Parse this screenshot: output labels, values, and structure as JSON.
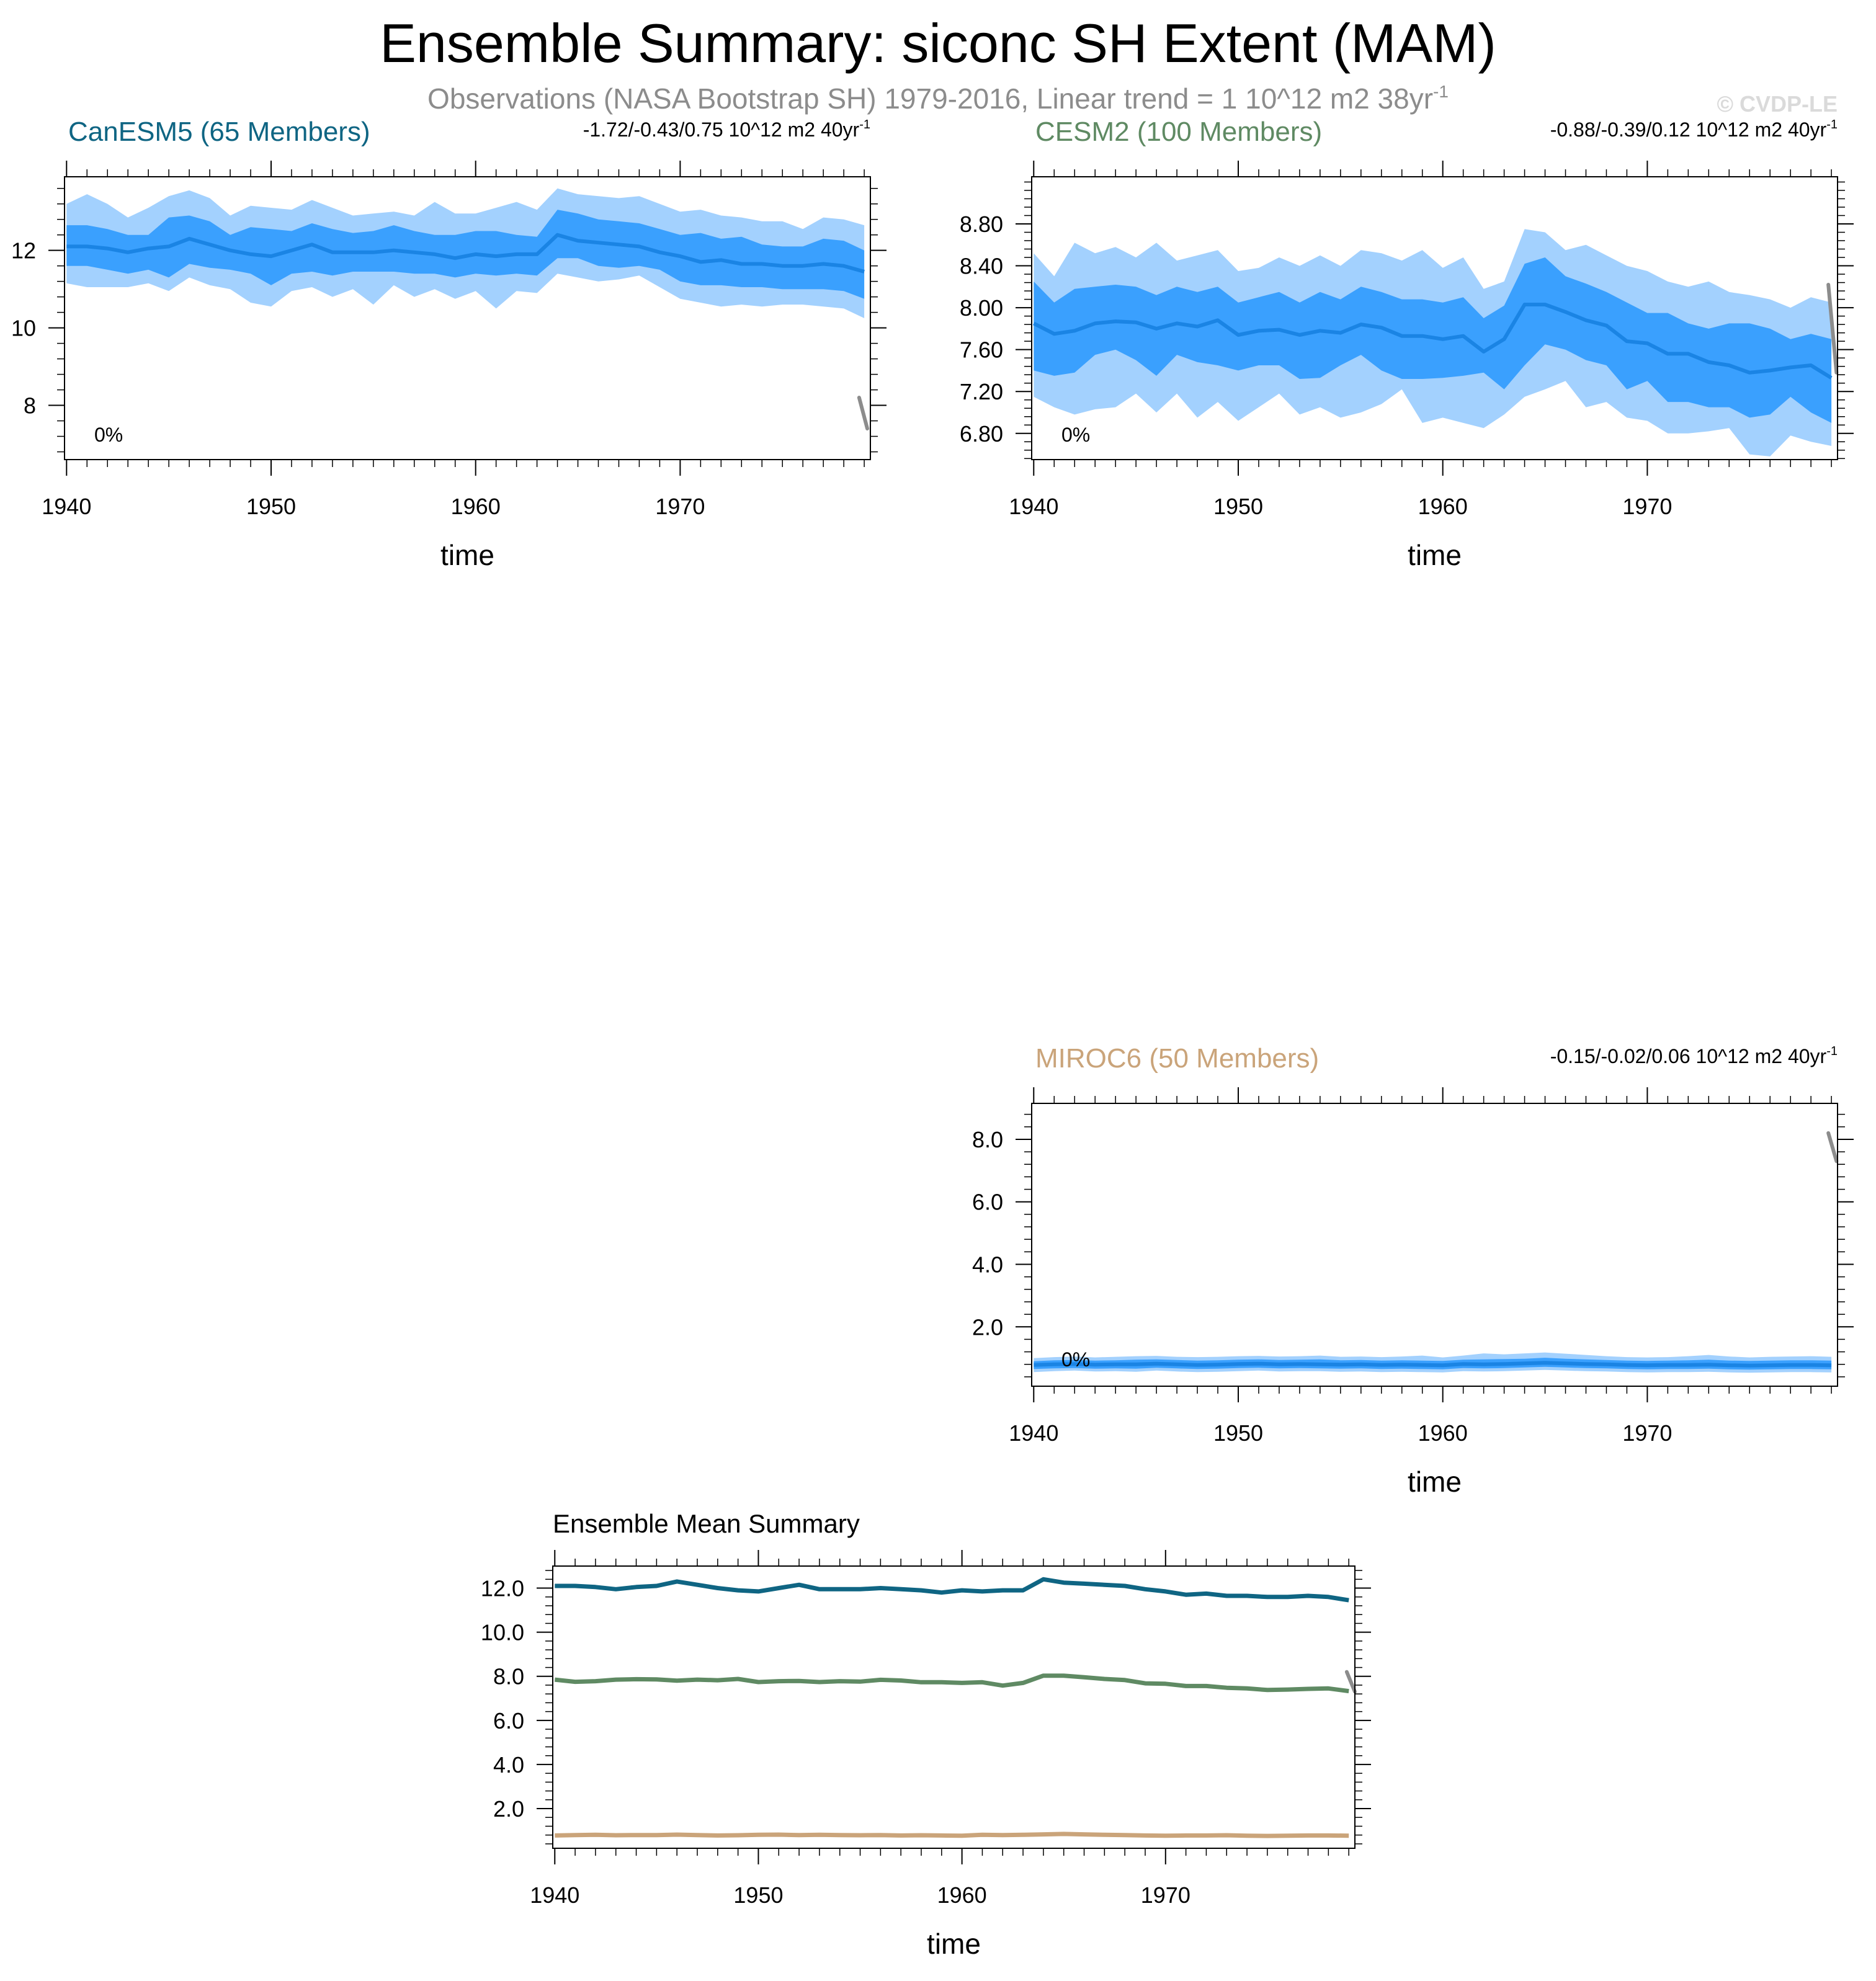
{
  "figure": {
    "title": "Ensemble Summary: siconc SH Extent (MAM)",
    "subtitle_text": "Observations (NASA Bootstrap SH) 1979-2016, Linear trend = 1 10^12 m2 38yr",
    "subtitle_sup": "-1",
    "watermark": "© CVDP-LE"
  },
  "colors": {
    "canesm5_title": "#0f6583",
    "cesm2_title": "#5f8a63",
    "miroc6_title": "#caa47a",
    "band_outer": "#a3d1fe",
    "band_inner": "#3aa0fe",
    "mean_line": "#1a84e4",
    "obs_line": "#8c8c8c",
    "mean_canesm5": "#0f6583",
    "mean_cesm2": "#5f8a63",
    "mean_miroc6": "#caa47a"
  },
  "chart_data": [
    {
      "id": "canesm5",
      "type": "area",
      "title": "CanESM5 (65 Members)",
      "trend_text": "-1.72/-0.43/0.75 10^12 m2 40yr",
      "trend_sup": "-1",
      "pct_label": "0%",
      "xlabel": "time",
      "ylabel": "",
      "xlim": [
        1939.9,
        1979.3
      ],
      "ylim": [
        6.6,
        13.9
      ],
      "xticks": [
        1940,
        1950,
        1960,
        1970
      ],
      "xtick_labels": [
        "1940",
        "1950",
        "1960",
        "1970"
      ],
      "yticks": [
        8,
        10,
        12
      ],
      "ytick_labels": [
        "8",
        "10",
        "12"
      ],
      "x": [
        1940,
        1941,
        1942,
        1943,
        1944,
        1945,
        1946,
        1947,
        1948,
        1949,
        1950,
        1951,
        1952,
        1953,
        1954,
        1955,
        1956,
        1957,
        1958,
        1959,
        1960,
        1961,
        1962,
        1963,
        1964,
        1965,
        1966,
        1967,
        1968,
        1969,
        1970,
        1971,
        1972,
        1973,
        1974,
        1975,
        1976,
        1977,
        1978,
        1979
      ],
      "min": [
        11.15,
        11.05,
        11.05,
        11.05,
        11.15,
        10.95,
        11.3,
        11.1,
        11.0,
        10.65,
        10.55,
        10.95,
        11.05,
        10.8,
        11.0,
        10.6,
        11.1,
        10.8,
        11.0,
        10.75,
        10.95,
        10.5,
        10.95,
        10.9,
        11.4,
        11.3,
        11.2,
        11.25,
        11.35,
        11.05,
        10.75,
        10.65,
        10.55,
        10.6,
        10.55,
        10.6,
        10.6,
        10.55,
        10.5,
        10.25
      ],
      "p10": [
        11.6,
        11.6,
        11.5,
        11.4,
        11.5,
        11.3,
        11.65,
        11.55,
        11.5,
        11.4,
        11.1,
        11.4,
        11.45,
        11.35,
        11.45,
        11.45,
        11.45,
        11.4,
        11.4,
        11.3,
        11.4,
        11.35,
        11.4,
        11.35,
        11.8,
        11.8,
        11.6,
        11.55,
        11.6,
        11.5,
        11.2,
        11.1,
        11.1,
        11.05,
        11.05,
        11.0,
        11.0,
        11.0,
        10.95,
        10.75
      ],
      "mean": [
        12.1,
        12.1,
        12.05,
        11.95,
        12.05,
        12.1,
        12.3,
        12.15,
        12.0,
        11.9,
        11.85,
        12.0,
        12.15,
        11.95,
        11.95,
        11.95,
        12.0,
        11.95,
        11.9,
        11.8,
        11.9,
        11.85,
        11.9,
        11.9,
        12.4,
        12.25,
        12.2,
        12.15,
        12.1,
        11.95,
        11.85,
        11.7,
        11.75,
        11.65,
        11.65,
        11.6,
        11.6,
        11.65,
        11.6,
        11.45
      ],
      "p90": [
        12.65,
        12.65,
        12.55,
        12.4,
        12.4,
        12.85,
        12.9,
        12.75,
        12.4,
        12.6,
        12.55,
        12.5,
        12.7,
        12.55,
        12.45,
        12.5,
        12.65,
        12.5,
        12.4,
        12.4,
        12.5,
        12.5,
        12.4,
        12.35,
        13.05,
        12.95,
        12.8,
        12.75,
        12.7,
        12.55,
        12.4,
        12.45,
        12.3,
        12.35,
        12.15,
        12.1,
        12.1,
        12.3,
        12.25,
        12.0
      ],
      "max": [
        13.2,
        13.45,
        13.2,
        12.85,
        13.1,
        13.4,
        13.55,
        13.35,
        12.9,
        13.15,
        13.1,
        13.05,
        13.3,
        13.1,
        12.9,
        12.95,
        13.0,
        12.9,
        13.25,
        12.95,
        12.95,
        13.1,
        13.25,
        13.05,
        13.6,
        13.45,
        13.4,
        13.35,
        13.4,
        13.2,
        13.0,
        13.05,
        12.9,
        12.85,
        12.75,
        12.75,
        12.55,
        12.85,
        12.8,
        12.65
      ],
      "obs_segment": {
        "x": [
          1978.75,
          1979.15
        ],
        "y": [
          8.2,
          7.4
        ]
      }
    },
    {
      "id": "cesm2",
      "type": "area",
      "title": "CESM2 (100 Members)",
      "trend_text": "-0.88/-0.39/0.12 10^12 m2 40yr",
      "trend_sup": "-1",
      "pct_label": "0%",
      "xlabel": "time",
      "ylabel": "",
      "xlim": [
        1939.9,
        1979.3
      ],
      "ylim": [
        6.55,
        9.25
      ],
      "xticks": [
        1940,
        1950,
        1960,
        1970
      ],
      "xtick_labels": [
        "1940",
        "1950",
        "1960",
        "1970"
      ],
      "yticks": [
        6.8,
        7.2,
        7.6,
        8.0,
        8.4,
        8.8
      ],
      "ytick_labels": [
        "6.80",
        "7.20",
        "7.60",
        "8.00",
        "8.40",
        "8.80"
      ],
      "x": [
        1940,
        1941,
        1942,
        1943,
        1944,
        1945,
        1946,
        1947,
        1948,
        1949,
        1950,
        1951,
        1952,
        1953,
        1954,
        1955,
        1956,
        1957,
        1958,
        1959,
        1960,
        1961,
        1962,
        1963,
        1964,
        1965,
        1966,
        1967,
        1968,
        1969,
        1970,
        1971,
        1972,
        1973,
        1974,
        1975,
        1976,
        1977,
        1978,
        1979
      ],
      "min": [
        7.15,
        7.05,
        6.98,
        7.03,
        7.05,
        7.18,
        7.0,
        7.18,
        6.95,
        7.1,
        6.92,
        7.05,
        7.18,
        6.98,
        7.05,
        6.95,
        7.0,
        7.08,
        7.22,
        6.9,
        6.95,
        6.9,
        6.85,
        6.98,
        7.15,
        7.22,
        7.3,
        7.05,
        7.1,
        6.95,
        6.92,
        6.8,
        6.8,
        6.82,
        6.85,
        6.6,
        6.58,
        6.78,
        6.72,
        6.68
      ],
      "p10": [
        7.4,
        7.35,
        7.38,
        7.55,
        7.6,
        7.5,
        7.35,
        7.55,
        7.48,
        7.45,
        7.4,
        7.45,
        7.45,
        7.32,
        7.33,
        7.45,
        7.55,
        7.4,
        7.32,
        7.32,
        7.33,
        7.35,
        7.38,
        7.22,
        7.45,
        7.65,
        7.6,
        7.5,
        7.45,
        7.22,
        7.3,
        7.1,
        7.1,
        7.05,
        7.05,
        6.95,
        6.98,
        7.15,
        7.0,
        6.9
      ],
      "mean": [
        7.85,
        7.75,
        7.78,
        7.85,
        7.87,
        7.86,
        7.8,
        7.85,
        7.82,
        7.88,
        7.74,
        7.78,
        7.79,
        7.74,
        7.78,
        7.76,
        7.84,
        7.81,
        7.73,
        7.73,
        7.7,
        7.73,
        7.58,
        7.7,
        8.03,
        8.03,
        7.96,
        7.88,
        7.83,
        7.68,
        7.66,
        7.56,
        7.56,
        7.48,
        7.45,
        7.38,
        7.4,
        7.43,
        7.45,
        7.33
      ],
      "p90": [
        8.25,
        8.05,
        8.18,
        8.2,
        8.22,
        8.2,
        8.12,
        8.2,
        8.15,
        8.2,
        8.05,
        8.1,
        8.15,
        8.05,
        8.15,
        8.08,
        8.2,
        8.15,
        8.08,
        8.08,
        8.05,
        8.1,
        7.9,
        8.02,
        8.42,
        8.48,
        8.3,
        8.23,
        8.15,
        8.05,
        7.95,
        7.95,
        7.85,
        7.8,
        7.85,
        7.85,
        7.8,
        7.7,
        7.75,
        7.7
      ],
      "max": [
        8.52,
        8.3,
        8.62,
        8.52,
        8.58,
        8.48,
        8.62,
        8.45,
        8.5,
        8.55,
        8.35,
        8.38,
        8.48,
        8.4,
        8.5,
        8.4,
        8.55,
        8.52,
        8.45,
        8.55,
        8.38,
        8.48,
        8.18,
        8.25,
        8.75,
        8.72,
        8.55,
        8.6,
        8.5,
        8.4,
        8.35,
        8.25,
        8.2,
        8.25,
        8.15,
        8.12,
        8.08,
        8.0,
        8.1,
        8.05
      ],
      "obs_segment": {
        "x": [
          1978.85,
          1979.25
        ],
        "y": [
          8.22,
          7.38
        ]
      }
    },
    {
      "id": "miroc6",
      "type": "area",
      "title": "MIROC6 (50 Members)",
      "trend_text": "-0.15/-0.02/0.06 10^12 m2 40yr",
      "trend_sup": "-1",
      "pct_label": "0%",
      "xlabel": "time",
      "ylabel": "",
      "xlim": [
        1939.9,
        1979.3
      ],
      "ylim": [
        0.1,
        9.15
      ],
      "xticks": [
        1940,
        1950,
        1960,
        1970
      ],
      "xtick_labels": [
        "1940",
        "1950",
        "1960",
        "1970"
      ],
      "yticks": [
        2,
        4,
        6,
        8
      ],
      "ytick_labels": [
        "2.0",
        "4.0",
        "6.0",
        "8.0"
      ],
      "x": [
        1940,
        1941,
        1942,
        1943,
        1944,
        1945,
        1946,
        1947,
        1948,
        1949,
        1950,
        1951,
        1952,
        1953,
        1954,
        1955,
        1956,
        1957,
        1958,
        1959,
        1960,
        1961,
        1962,
        1963,
        1964,
        1965,
        1966,
        1967,
        1968,
        1969,
        1970,
        1971,
        1972,
        1973,
        1974,
        1975,
        1976,
        1977,
        1978,
        1979
      ],
      "min": [
        0.55,
        0.58,
        0.6,
        0.57,
        0.58,
        0.56,
        0.6,
        0.57,
        0.55,
        0.56,
        0.58,
        0.6,
        0.57,
        0.58,
        0.58,
        0.56,
        0.57,
        0.55,
        0.56,
        0.55,
        0.54,
        0.58,
        0.57,
        0.58,
        0.6,
        0.62,
        0.6,
        0.58,
        0.57,
        0.55,
        0.54,
        0.55,
        0.55,
        0.56,
        0.54,
        0.53,
        0.54,
        0.55,
        0.55,
        0.54
      ],
      "p10": [
        0.65,
        0.67,
        0.68,
        0.66,
        0.67,
        0.66,
        0.69,
        0.67,
        0.65,
        0.66,
        0.68,
        0.69,
        0.67,
        0.68,
        0.67,
        0.66,
        0.67,
        0.65,
        0.66,
        0.65,
        0.64,
        0.68,
        0.67,
        0.68,
        0.7,
        0.72,
        0.7,
        0.68,
        0.67,
        0.65,
        0.64,
        0.65,
        0.65,
        0.66,
        0.64,
        0.63,
        0.64,
        0.65,
        0.65,
        0.64
      ],
      "mean": [
        0.78,
        0.8,
        0.81,
        0.79,
        0.8,
        0.8,
        0.82,
        0.8,
        0.78,
        0.79,
        0.81,
        0.82,
        0.8,
        0.81,
        0.8,
        0.79,
        0.8,
        0.78,
        0.79,
        0.78,
        0.77,
        0.81,
        0.8,
        0.81,
        0.83,
        0.85,
        0.83,
        0.81,
        0.8,
        0.78,
        0.77,
        0.78,
        0.78,
        0.79,
        0.77,
        0.76,
        0.77,
        0.78,
        0.78,
        0.77
      ],
      "p90": [
        0.9,
        0.93,
        0.94,
        0.92,
        0.93,
        0.95,
        0.96,
        0.94,
        0.92,
        0.93,
        0.95,
        0.96,
        0.94,
        0.95,
        0.96,
        0.93,
        0.94,
        0.92,
        0.93,
        0.92,
        0.91,
        0.95,
        0.96,
        0.97,
        0.98,
        1.01,
        0.98,
        0.96,
        0.94,
        0.92,
        0.91,
        0.92,
        0.93,
        0.95,
        0.92,
        0.91,
        0.92,
        0.93,
        0.93,
        0.92
      ],
      "max": [
        1.0,
        1.03,
        1.05,
        1.02,
        1.04,
        1.06,
        1.07,
        1.04,
        1.03,
        1.04,
        1.06,
        1.07,
        1.05,
        1.06,
        1.08,
        1.04,
        1.05,
        1.03,
        1.05,
        1.08,
        1.02,
        1.08,
        1.15,
        1.12,
        1.15,
        1.18,
        1.14,
        1.1,
        1.06,
        1.03,
        1.02,
        1.03,
        1.06,
        1.1,
        1.05,
        1.02,
        1.04,
        1.05,
        1.06,
        1.04
      ],
      "obs_segment": {
        "x": [
          1978.85,
          1979.25
        ],
        "y": [
          8.2,
          7.3
        ]
      }
    },
    {
      "id": "summary",
      "type": "line",
      "title": "Ensemble Mean Summary",
      "xlabel": "time",
      "ylabel": "",
      "xlim": [
        1939.9,
        1979.3
      ],
      "ylim": [
        0.2,
        13.0
      ],
      "xticks": [
        1940,
        1950,
        1960,
        1970
      ],
      "xtick_labels": [
        "1940",
        "1950",
        "1960",
        "1970"
      ],
      "yticks": [
        2,
        4,
        6,
        8,
        10,
        12
      ],
      "ytick_labels": [
        "2.0",
        "4.0",
        "6.0",
        "8.0",
        "10.0",
        "12.0"
      ],
      "x": [
        1940,
        1941,
        1942,
        1943,
        1944,
        1945,
        1946,
        1947,
        1948,
        1949,
        1950,
        1951,
        1952,
        1953,
        1954,
        1955,
        1956,
        1957,
        1958,
        1959,
        1960,
        1961,
        1962,
        1963,
        1964,
        1965,
        1966,
        1967,
        1968,
        1969,
        1970,
        1971,
        1972,
        1973,
        1974,
        1975,
        1976,
        1977,
        1978,
        1979
      ],
      "series": [
        {
          "name": "CanESM5",
          "color_key": "mean_canesm5",
          "values": [
            12.1,
            12.1,
            12.05,
            11.95,
            12.05,
            12.1,
            12.3,
            12.15,
            12.0,
            11.9,
            11.85,
            12.0,
            12.15,
            11.95,
            11.95,
            11.95,
            12.0,
            11.95,
            11.9,
            11.8,
            11.9,
            11.85,
            11.9,
            11.9,
            12.4,
            12.25,
            12.2,
            12.15,
            12.1,
            11.95,
            11.85,
            11.7,
            11.75,
            11.65,
            11.65,
            11.6,
            11.6,
            11.65,
            11.6,
            11.45
          ]
        },
        {
          "name": "CESM2",
          "color_key": "mean_cesm2",
          "values": [
            7.85,
            7.75,
            7.78,
            7.85,
            7.87,
            7.86,
            7.8,
            7.85,
            7.82,
            7.88,
            7.74,
            7.78,
            7.79,
            7.74,
            7.78,
            7.76,
            7.84,
            7.81,
            7.73,
            7.73,
            7.7,
            7.73,
            7.58,
            7.7,
            8.03,
            8.03,
            7.96,
            7.88,
            7.83,
            7.68,
            7.66,
            7.56,
            7.56,
            7.48,
            7.45,
            7.38,
            7.4,
            7.43,
            7.45,
            7.33
          ]
        },
        {
          "name": "MIROC6",
          "color_key": "mean_miroc6",
          "values": [
            0.78,
            0.8,
            0.81,
            0.79,
            0.8,
            0.8,
            0.82,
            0.8,
            0.78,
            0.79,
            0.81,
            0.82,
            0.8,
            0.81,
            0.8,
            0.79,
            0.8,
            0.78,
            0.79,
            0.78,
            0.77,
            0.81,
            0.8,
            0.81,
            0.83,
            0.85,
            0.83,
            0.81,
            0.8,
            0.78,
            0.77,
            0.78,
            0.78,
            0.79,
            0.77,
            0.76,
            0.77,
            0.78,
            0.78,
            0.77
          ]
        }
      ],
      "obs_segment": {
        "x": [
          1978.9,
          1979.3
        ],
        "y": [
          8.2,
          7.3
        ]
      }
    }
  ]
}
